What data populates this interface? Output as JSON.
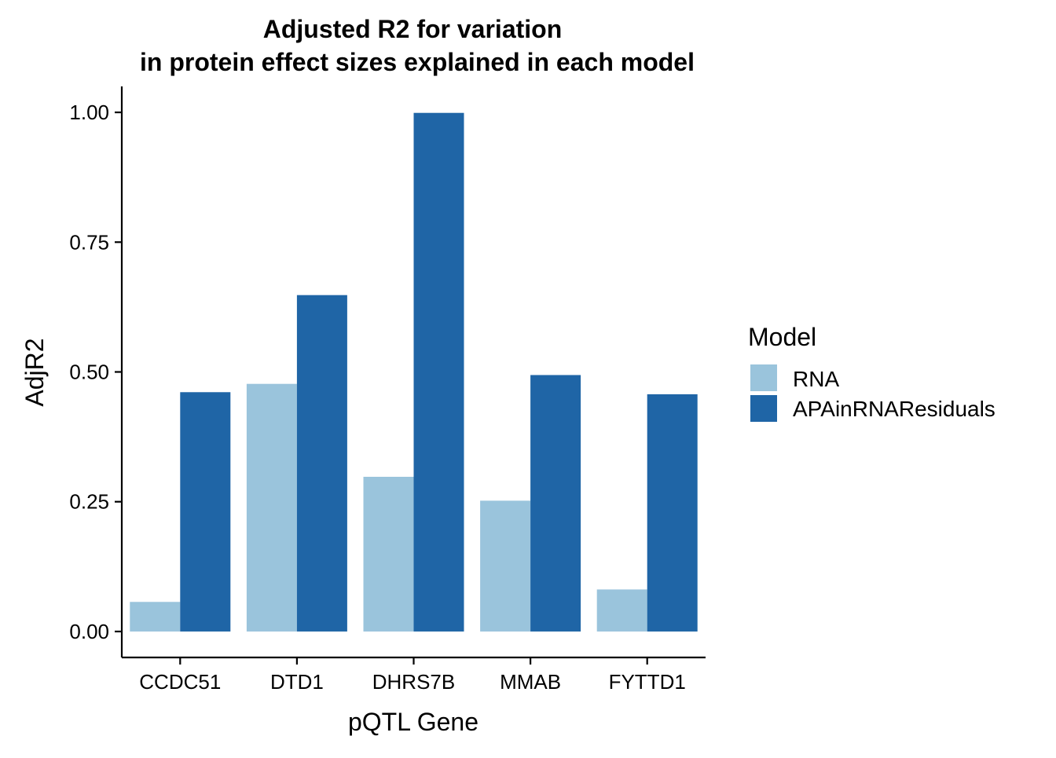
{
  "colors": {
    "rna": "#9ac4dc",
    "apa": "#1f65a6",
    "axis": "#000000",
    "background": "#ffffff"
  },
  "chart_data": {
    "type": "bar",
    "title_lines": [
      "Adjusted R2 for variation",
      "in protein effect sizes explained in each model"
    ],
    "xlabel": "pQTL Gene",
    "ylabel": "AdjR2",
    "categories": [
      "CCDC51",
      "DTD1",
      "DHRS7B",
      "MMAB",
      "FYTTD1"
    ],
    "series": [
      {
        "name": "RNA",
        "color": "#9ac4dc",
        "values": [
          0.057,
          0.477,
          0.298,
          0.252,
          0.081
        ]
      },
      {
        "name": "APAinRNAResiduals",
        "color": "#1f65a6",
        "values": [
          0.461,
          0.648,
          0.999,
          0.494,
          0.457
        ]
      }
    ],
    "ylim": [
      -0.05,
      1.05
    ],
    "yticks": [
      0,
      0.25,
      0.5,
      0.75,
      1.0
    ],
    "ytick_labels": [
      "0.00",
      "0.25",
      "0.50",
      "0.75",
      "1.00"
    ],
    "grid": false,
    "legend": {
      "title": "Model",
      "position": "right"
    }
  }
}
